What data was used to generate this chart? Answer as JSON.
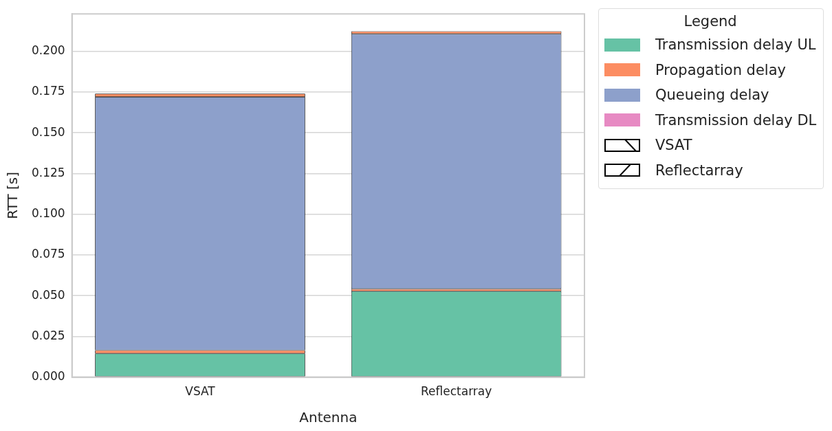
{
  "chart_data": {
    "type": "bar",
    "stacked": true,
    "xlabel": "Antenna",
    "ylabel": "RTT [s]",
    "legend_title": "Legend",
    "legend": "top right",
    "grid": "y",
    "categories": [
      "VSAT",
      "Reflectarray"
    ],
    "series": [
      {
        "name": "Transmission delay UL",
        "color": "#66c2a5",
        "values": [
          0.0145,
          0.0527
        ]
      },
      {
        "name": "Propagation delay",
        "color": "#fc8d62",
        "values": [
          0.002,
          0.0014
        ]
      },
      {
        "name": "Queueing delay",
        "color": "#8da0cb",
        "values": [
          0.1555,
          0.1566
        ]
      },
      {
        "name": "Transmission delay DL",
        "color": "#e78ac3",
        "values": [
          0,
          0
        ]
      },
      {
        "color": "#fc8d62",
        "values": [
          0.002,
          0.0016
        ]
      }
    ],
    "annotations": [
      "VSAT",
      "Reflectarray"
    ],
    "ylim": [
      0,
      0.223
    ],
    "yticks": [
      {
        "value": 0,
        "label": "0.000"
      },
      {
        "value": 0.025,
        "label": "0.025"
      },
      {
        "value": 0.05,
        "label": "0.050"
      },
      {
        "value": 0.075,
        "label": "0.075"
      },
      {
        "value": 0.1,
        "label": "0.100"
      },
      {
        "value": 0.125,
        "label": "0.125"
      },
      {
        "value": 0.15,
        "label": "0.150"
      },
      {
        "value": 0.175,
        "label": "0.175"
      },
      {
        "value": 0.2,
        "label": "0.200"
      }
    ]
  }
}
